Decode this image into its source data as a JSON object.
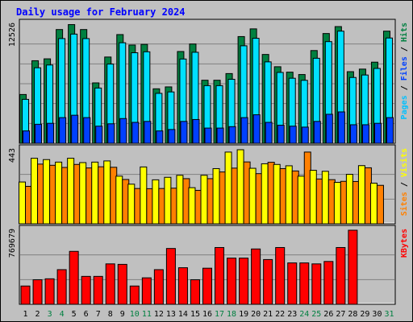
{
  "chart_data": {
    "type": "bar",
    "title": "Daily usage for February 2024",
    "colors": {
      "background": "#c0c0c0",
      "plot_background": "#c0c0c0",
      "title": "#0000ff",
      "hits": "#008040",
      "files": "#00e0ff",
      "pages": "#0040ff",
      "visits": "#ffff00",
      "sites": "#ff8000",
      "kbytes": "#ff0000",
      "weekend_day_label": "#008040"
    },
    "days": [
      {
        "label": "1",
        "weekend": false
      },
      {
        "label": "2",
        "weekend": false
      },
      {
        "label": "3",
        "weekend": true
      },
      {
        "label": "4",
        "weekend": true
      },
      {
        "label": "5",
        "weekend": false
      },
      {
        "label": "6",
        "weekend": false
      },
      {
        "label": "7",
        "weekend": false
      },
      {
        "label": "8",
        "weekend": false
      },
      {
        "label": "9",
        "weekend": false
      },
      {
        "label": "10",
        "weekend": true
      },
      {
        "label": "11",
        "weekend": true
      },
      {
        "label": "12",
        "weekend": false
      },
      {
        "label": "13",
        "weekend": false
      },
      {
        "label": "14",
        "weekend": false
      },
      {
        "label": "15",
        "weekend": false
      },
      {
        "label": "16",
        "weekend": false
      },
      {
        "label": "17",
        "weekend": true
      },
      {
        "label": "18",
        "weekend": true
      },
      {
        "label": "19",
        "weekend": false
      },
      {
        "label": "20",
        "weekend": false
      },
      {
        "label": "21",
        "weekend": false
      },
      {
        "label": "22",
        "weekend": false
      },
      {
        "label": "23",
        "weekend": false
      },
      {
        "label": "24",
        "weekend": true
      },
      {
        "label": "25",
        "weekend": true
      },
      {
        "label": "26",
        "weekend": false
      },
      {
        "label": "27",
        "weekend": false
      },
      {
        "label": "28",
        "weekend": false
      },
      {
        "label": "29",
        "weekend": false
      },
      {
        "label": "30",
        "weekend": false
      },
      {
        "label": "31",
        "weekend": true
      }
    ],
    "panels": [
      {
        "name": "hits-files-pages",
        "max_label": "12526",
        "max_value": 12526,
        "legend": [
          {
            "text": "Pages",
            "color": "#00c0ff"
          },
          {
            "text": " / ",
            "color": "#000000"
          },
          {
            "text": "Files",
            "color": "#0040ff"
          },
          {
            "text": " / ",
            "color": "#000000"
          },
          {
            "text": "Hits",
            "color": "#008040"
          }
        ],
        "series": [
          {
            "name": "Hits",
            "color": "#008040",
            "values": [
              5130,
              8680,
              8880,
              11960,
              12480,
              11960,
              6350,
              9070,
              11430,
              10330,
              10400,
              5730,
              5930,
              9650,
              10440,
              6630,
              6630,
              7330,
              11220,
              12030,
              9340,
              8050,
              7480,
              7230,
              9750,
              11540,
              12270,
              7530,
              7800,
              8530,
              11790
            ]
          },
          {
            "name": "Files",
            "color": "#00e0ff",
            "values": [
              4620,
              7940,
              8230,
              11010,
              11480,
              11010,
              5810,
              8330,
              10570,
              9520,
              9620,
              5250,
              5400,
              8860,
              9570,
              6060,
              6060,
              6730,
              10250,
              11040,
              8560,
              7450,
              6840,
              6620,
              8940,
              10690,
              11790,
              6920,
              7180,
              7870,
              11070
            ]
          },
          {
            "name": "Pages",
            "color": "#0040ff",
            "values": [
              1300,
              2000,
              2100,
              2700,
              2950,
              2700,
              1800,
              2050,
              2600,
              2200,
              2300,
              1300,
              1450,
              2300,
              2500,
              1600,
              1600,
              1750,
              2700,
              3000,
              2200,
              1900,
              1800,
              1700,
              2300,
              3050,
              3300,
              1950,
              1950,
              2100,
              2700
            ]
          }
        ]
      },
      {
        "name": "visits-sites",
        "max_label": "443",
        "max_value": 443,
        "legend": [
          {
            "text": "Sites",
            "color": "#ff8000"
          },
          {
            "text": " / ",
            "color": "#000000"
          },
          {
            "text": "Visits",
            "color": "#ffff00"
          }
        ],
        "series": [
          {
            "name": "Visits",
            "color": "#ffff00",
            "values": [
              250,
              392,
              384,
              369,
              392,
              366,
              369,
              376,
              285,
              237,
              340,
              263,
              278,
              290,
              216,
              290,
              330,
              429,
              443,
              332,
              359,
              355,
              347,
              285,
              320,
              314,
              248,
              296,
              348,
              243,
              0
            ]
          },
          {
            "name": "Sites",
            "color": "#ff8000",
            "values": [
              224,
              357,
              350,
              337,
              355,
              334,
              341,
              338,
              265,
              211,
              210,
              211,
              213,
              270,
              200,
              270,
              310,
              333,
              370,
              300,
              368,
              330,
              316,
              429,
              268,
              264,
              254,
              253,
              335,
              230,
              0
            ]
          }
        ]
      },
      {
        "name": "kbytes",
        "max_label": "769679",
        "max_value": 769679,
        "legend": [
          {
            "text": "KBytes",
            "color": "#ff0000"
          }
        ],
        "series": [
          {
            "name": "KBytes",
            "color": "#ff0000",
            "values": [
              190000,
              255000,
              265000,
              360000,
              550000,
              290000,
              290000,
              420000,
              415000,
              190000,
              275000,
              360000,
              580000,
              380000,
              255000,
              375000,
              590000,
              480000,
              480000,
              575000,
              465000,
              590000,
              430000,
              430000,
              420000,
              445000,
              590000,
              769679,
              0,
              0,
              0
            ]
          }
        ]
      }
    ]
  }
}
